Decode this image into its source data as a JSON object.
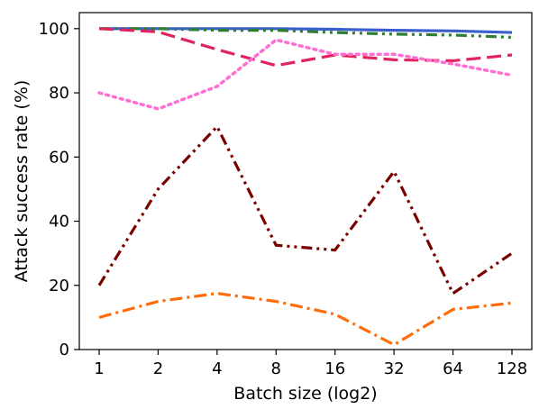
{
  "chart_data": {
    "type": "line",
    "xlabel": "Batch size (log2)",
    "ylabel": "Attack success rate (%)",
    "x": [
      1,
      2,
      4,
      8,
      16,
      32,
      64,
      128
    ],
    "x_tick_labels": [
      "1",
      "2",
      "4",
      "8",
      "16",
      "32",
      "64",
      "128"
    ],
    "x_scale": "log2",
    "xlim": [
      1,
      128
    ],
    "ylim": [
      0,
      105
    ],
    "y_ticks": [
      0,
      20,
      40,
      60,
      80,
      100
    ],
    "y_tick_labels": [
      "0",
      "20",
      "40",
      "60",
      "80",
      "100"
    ],
    "grid": false,
    "legend": "none",
    "series": [
      {
        "color": "#3a5fcd",
        "style": "solid",
        "values": [
          100,
          100,
          100,
          100,
          99.8,
          99.5,
          99.3,
          98.8
        ]
      },
      {
        "color": "#2e7d32",
        "style": "dashdotdot",
        "values": [
          100,
          100,
          99.5,
          99.5,
          98.8,
          98.3,
          98.0,
          97.3
        ]
      },
      {
        "color": "#e0245e",
        "style": "dashed",
        "values": [
          100,
          99,
          93.5,
          88.5,
          91.8,
          90.3,
          90.0,
          91.8
        ]
      },
      {
        "color": "#ff6ed2",
        "style": "dotted",
        "values": [
          80,
          75,
          82,
          96.5,
          92,
          92,
          89,
          85.5
        ]
      },
      {
        "color": "#7a0000",
        "style": "dashdotdot",
        "values": [
          20,
          50,
          69.5,
          32.5,
          31,
          55.5,
          17.5,
          30
        ]
      },
      {
        "color": "#ff6d0a",
        "style": "dashdot",
        "values": [
          10,
          15,
          17.5,
          15,
          11,
          1.5,
          12.5,
          14.5
        ]
      }
    ]
  }
}
